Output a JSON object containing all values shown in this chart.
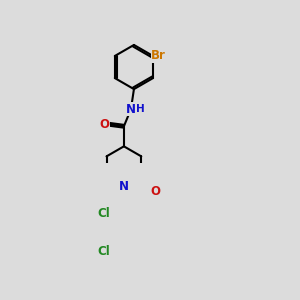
{
  "bg_color": "#dcdcdc",
  "bond_color": "#000000",
  "bond_width": 1.5,
  "atom_colors": {
    "Br": "#cc7700",
    "Cl": "#228822",
    "N": "#1111cc",
    "O": "#cc1111",
    "H": "#1111cc"
  },
  "font_size": 8.5
}
